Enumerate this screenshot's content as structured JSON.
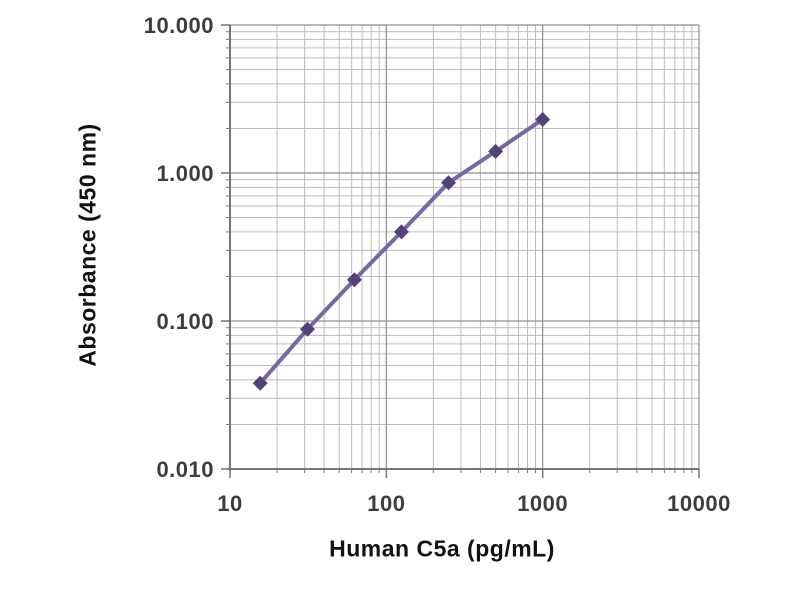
{
  "figure": {
    "background": "#ffffff"
  },
  "chart_data": {
    "type": "line",
    "title": "",
    "xlabel": "Human C5a (pg/mL)",
    "ylabel": "Absorbance (450 nm)",
    "xscale": "log",
    "yscale": "log",
    "xlim": [
      10,
      10000
    ],
    "ylim": [
      0.01,
      10
    ],
    "x": [
      15.6,
      31.3,
      62.5,
      125,
      250,
      500,
      1000
    ],
    "y": [
      0.038,
      0.088,
      0.19,
      0.4,
      0.86,
      1.4,
      2.3
    ],
    "x_tick_values": [
      10,
      100,
      1000,
      10000
    ],
    "x_tick_labels": [
      "10",
      "100",
      "1000",
      "10000"
    ],
    "y_tick_values": [
      10,
      1,
      0.1,
      0.01
    ],
    "y_tick_labels": [
      "10.000",
      "1.000",
      "0.100",
      "0.010"
    ],
    "grid": {
      "major": true,
      "minor": true
    },
    "legend": "none",
    "marker": "diamond",
    "series_color": "#7668a4",
    "marker_color": "#53427c",
    "grid_minor_color": "#bcbcbc",
    "grid_major_color": "#8f8f8f",
    "axis_color": "#767676",
    "tick_label_color": "#3d3d3d"
  }
}
